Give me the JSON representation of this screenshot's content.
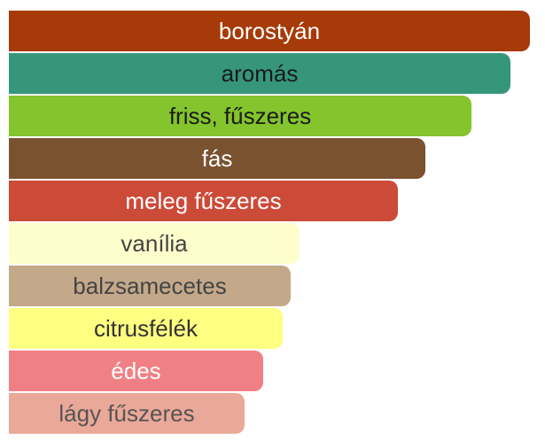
{
  "chart_data": {
    "type": "bar",
    "orientation": "horizontal",
    "categories": [
      "borostyán",
      "aromás",
      "friss, fűszeres",
      "fás",
      "meleg fűszeres",
      "vanília",
      "balzsamecetes",
      "citrusfélék",
      "édes",
      "lágy fűszeres"
    ],
    "values": [
      100,
      96.2,
      88.7,
      79.9,
      74.6,
      55.7,
      54.0,
      52.6,
      48.8,
      45.2
    ],
    "xlim": [
      0,
      100
    ],
    "grid": false,
    "legend": "none",
    "colors": [
      "#a63a08",
      "#36967a",
      "#84c42c",
      "#7a5230",
      "#cc4a38",
      "#fefecc",
      "#c4a88a",
      "#fefe80",
      "#f08084",
      "#eaa898"
    ],
    "label_colors": [
      "#ffffff",
      "#1a1a1a",
      "#1a1a1a",
      "#ffffff",
      "#ffffff",
      "#444444",
      "#444444",
      "#333333",
      "#ffffff",
      "#555555"
    ]
  }
}
